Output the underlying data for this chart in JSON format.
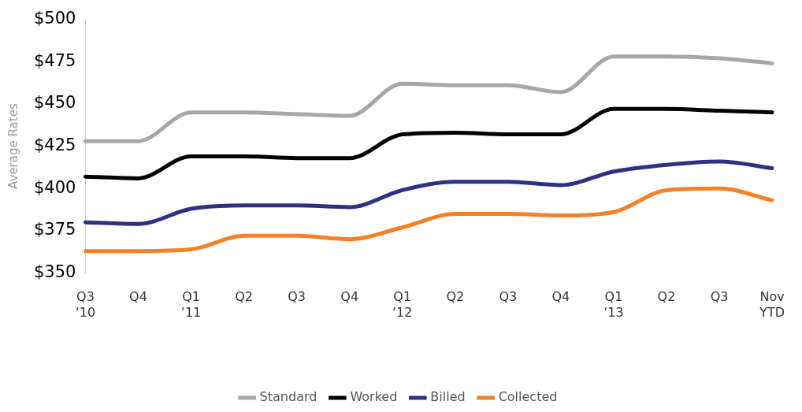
{
  "chart_data": {
    "type": "line",
    "ylabel": "Average Rates",
    "categories": [
      "Q3\n‘10",
      "Q4",
      "Q1\n‘11",
      "Q2",
      "Q3",
      "Q4",
      "Q1\n‘12",
      "Q2",
      "Q3",
      "Q4",
      "Q1\n‘13",
      "Q2",
      "Q3",
      "Nov\nYTD"
    ],
    "series": [
      {
        "name": "Standard",
        "color": "#a6a6a6",
        "values": [
          428,
          428,
          445,
          445,
          444,
          443,
          462,
          461,
          461,
          457,
          478,
          478,
          477,
          474
        ]
      },
      {
        "name": "Worked",
        "color": "#000000",
        "values": [
          407,
          406,
          419,
          419,
          418,
          418,
          432,
          433,
          432,
          432,
          447,
          447,
          446,
          445
        ]
      },
      {
        "name": "Billed",
        "color": "#2e3085",
        "values": [
          380,
          379,
          388,
          390,
          390,
          389,
          399,
          404,
          404,
          402,
          410,
          414,
          416,
          412
        ]
      },
      {
        "name": "Collected",
        "color": "#f58025",
        "values": [
          363,
          363,
          364,
          372,
          372,
          370,
          377,
          385,
          385,
          384,
          386,
          399,
          400,
          393
        ]
      }
    ],
    "ylim": [
      350,
      500
    ],
    "yticks": [
      {
        "value": 350,
        "label": "$350"
      },
      {
        "value": 375,
        "label": "$375"
      },
      {
        "value": 400,
        "label": "$400"
      },
      {
        "value": 425,
        "label": "$425"
      },
      {
        "value": 450,
        "label": "$450"
      },
      {
        "value": 475,
        "label": "$475"
      },
      {
        "value": 500,
        "label": "$500"
      }
    ],
    "legend": "bottom",
    "grid": false,
    "marker": "none",
    "line_style": "solid"
  }
}
